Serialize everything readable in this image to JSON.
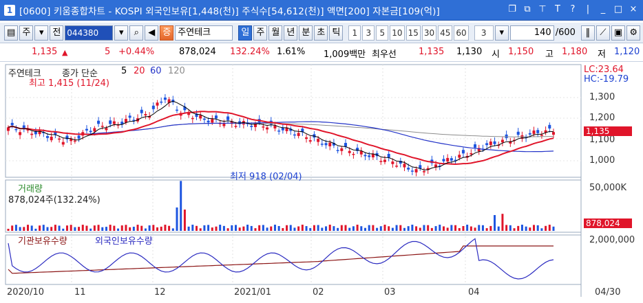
{
  "window": {
    "number": "1",
    "title": "[0600] 키움종합차트 - KOSPI 외국인보유[1,448(천)] 주식수[54,612(천)] 액면[200] 자본금[109(억)]",
    "icons": [
      "restore-icon",
      "copy-window-icon",
      "pin-icon",
      "font-icon",
      "help-icon",
      "minimize-icon",
      "maximize-icon",
      "close-icon"
    ]
  },
  "toolbar": {
    "market": "주",
    "all_label": "전",
    "stock_code": "044380",
    "stock_name": "주연테크",
    "periods": [
      "일",
      "주",
      "월",
      "년",
      "분",
      "초",
      "틱"
    ],
    "active_period": "일",
    "intervals": [
      "1",
      "3",
      "5",
      "10",
      "15",
      "30",
      "45",
      "60"
    ],
    "interval_value": "3",
    "count": "140",
    "count_total": "/600"
  },
  "quote": {
    "price": "1,135",
    "arrow": "▲",
    "change": "5",
    "change_pct": "+0.44%",
    "volume": "878,024",
    "volume_ratio": "132.24%",
    "turnover": "1.61%",
    "amount": "1,009백만",
    "best_label": "최우선",
    "best_ask": "1,135",
    "best_bid": "1,130",
    "open_label": "시",
    "open": "1,150",
    "high_label": "고",
    "high": "1,180",
    "low_label": "저",
    "low": "1,120"
  },
  "price_panel": {
    "legend_name": "주연테크",
    "legend_ma_prefix": "종가 단순",
    "ma_periods": [
      "5",
      "20",
      "60",
      "120"
    ],
    "max_label": "최고 1,415 (11/24)",
    "min_label": "최저 918 (02/04)",
    "lc": "LC:23.64",
    "hc": "HC:-19.79",
    "current_price_tag": "1,135",
    "y_ticks": [
      "1,300",
      "1,200",
      "1,100",
      "1,000"
    ]
  },
  "volume_panel": {
    "title": "거래량",
    "value_text": "878,024주(132.24%)",
    "y_tick": "50,000K",
    "current_volume_tag": "878,024"
  },
  "holding_panel": {
    "series_institution": "기관보유수량",
    "series_foreign": "외국인보유수량",
    "y_tick": "2,000,000"
  },
  "x_axis": {
    "labels": [
      "2020/10",
      "11",
      "12",
      "2021/01",
      "02",
      "03",
      "04"
    ],
    "right_label": "04/30"
  },
  "colors": {
    "up": "#e0152a",
    "down": "#1d55e0",
    "ma5": "#000000",
    "ma20": "#e0152a",
    "ma60": "#2333c8",
    "ma120": "#8c8c8c",
    "institution": "#8b1414",
    "foreign": "#2a2ac0",
    "titlebar": "#2f6fd6"
  },
  "chart_data": [
    {
      "type": "candlestick",
      "title": "주연테크",
      "y_ticks": [
        1000,
        1100,
        1200,
        1300
      ],
      "ylim": [
        900,
        1450
      ],
      "annotations": [
        "최고 1,415 (11/24)",
        "최저 918 (02/04)"
      ],
      "last_close": 1135
    },
    {
      "type": "bar",
      "title": "거래량",
      "y_ticks": [
        "50,000K"
      ],
      "last_value": 878024
    },
    {
      "type": "line",
      "series": [
        {
          "name": "기관보유수량"
        },
        {
          "name": "외국인보유수량"
        }
      ],
      "y_ticks": [
        "2,000,000"
      ]
    }
  ]
}
